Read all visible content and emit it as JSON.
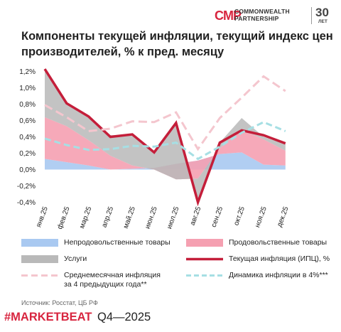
{
  "header": {
    "logo_mark": "CMP",
    "logo_line1": "COMMONWEALTH",
    "logo_line2": "PARTNERSHIP",
    "anniversary": "30",
    "anniversary_unit": "ЛЕТ"
  },
  "footer": {
    "source": "Источник: Росстат, ЦБ РФ",
    "brand": "#MARKETBEAT",
    "period": "Q4—2025"
  },
  "colors": {
    "nonfood": "#a9c9f1",
    "food": "#f5a0b1",
    "services": "#b9b9b9",
    "cpi": "#c41e3a",
    "avg4y": "#f4c6ce",
    "target4": "#a6dfe4",
    "brand": "#d8253f"
  },
  "chart_data": {
    "type": "area",
    "title": "Компоненты текущей инфляции, текущий индекс цен производителей, % к пред. месяцу",
    "categories": [
      "янв.25",
      "фев.25",
      "мар.25",
      "апр.25",
      "май.25",
      "июн.25",
      "июл.25",
      "авг.25",
      "сен.25",
      "окт.25",
      "ноя.25",
      "дек.25"
    ],
    "yticks": [
      "1,2%",
      "1,0%",
      "0,8%",
      "0,6%",
      "0,4%",
      "0,2%",
      "0,0%",
      "-0,2%",
      "-0,4%"
    ],
    "ylim": [
      -0.4,
      1.2
    ],
    "grid": false,
    "legend_position": "bottom",
    "series": [
      {
        "name": "Непродовольственные товары",
        "kind": "stacked-area",
        "color_key": "nonfood",
        "values": [
          0.13,
          0.09,
          0.05,
          0.0,
          0.01,
          0.02,
          0.07,
          0.11,
          0.19,
          0.21,
          0.06,
          0.05
        ]
      },
      {
        "name": "Продовольственные товары",
        "kind": "stacked-area",
        "color_key": "food",
        "values": [
          0.51,
          0.44,
          0.31,
          0.17,
          0.04,
          -0.02,
          -0.19,
          -0.22,
          0.07,
          0.28,
          0.31,
          0.18
        ]
      },
      {
        "name": "Услуги",
        "kind": "stacked-area",
        "color_key": "services",
        "values": [
          0.58,
          0.27,
          0.28,
          0.25,
          0.37,
          0.2,
          0.68,
          -0.28,
          0.07,
          0.14,
          0.03,
          0.08
        ]
      },
      {
        "name": "Текущая инфляция (ИПЦ), %",
        "kind": "line",
        "color_key": "cpi",
        "values": [
          1.23,
          0.81,
          0.65,
          0.4,
          0.43,
          0.21,
          0.57,
          -0.4,
          0.33,
          0.48,
          0.42,
          0.32
        ]
      },
      {
        "name": "Среднемесячная инфляция\nза 4 предыдущих года**",
        "kind": "dashed",
        "color_key": "avg4y",
        "values": [
          0.79,
          0.64,
          0.47,
          0.5,
          0.59,
          0.58,
          0.7,
          0.25,
          0.63,
          0.88,
          1.14,
          0.96
        ]
      },
      {
        "name": "Динамика инфляции в 4%***",
        "kind": "dashed",
        "color_key": "target4",
        "values": [
          0.38,
          0.3,
          0.24,
          0.25,
          0.29,
          0.28,
          0.33,
          0.13,
          0.28,
          0.45,
          0.58,
          0.47
        ]
      }
    ]
  }
}
